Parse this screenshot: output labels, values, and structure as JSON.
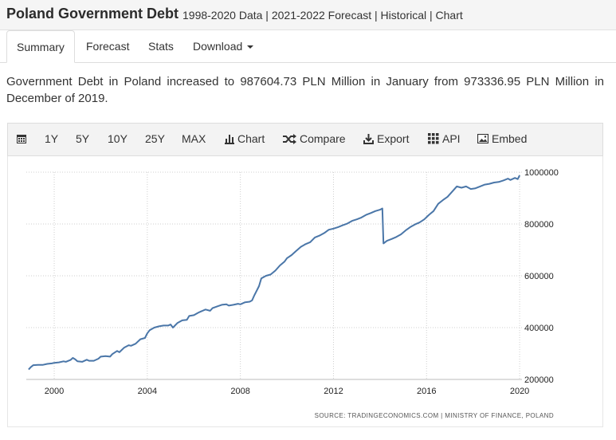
{
  "header": {
    "title": "Poland Government Debt",
    "subtitle": "1998-2020 Data | 2021-2022 Forecast | Historical | Chart"
  },
  "tabs": [
    {
      "label": "Summary",
      "active": true
    },
    {
      "label": "Forecast",
      "active": false
    },
    {
      "label": "Stats",
      "active": false
    },
    {
      "label": "Download",
      "active": false
    }
  ],
  "description": "Government Debt in Poland increased to 987604.73 PLN Million in January from 973336.95 PLN Million in December of 2019.",
  "toolbar": {
    "calendar_icon": "calendar-icon",
    "ranges": [
      "1Y",
      "5Y",
      "10Y",
      "25Y",
      "MAX"
    ],
    "chart_label": "Chart",
    "compare_label": "Compare",
    "export_label": "Export",
    "api_label": "API",
    "embed_label": "Embed"
  },
  "chart_data": {
    "type": "line",
    "title": "",
    "xlabel": "",
    "ylabel": "",
    "x_ticks": [
      "2000",
      "2004",
      "2008",
      "2012",
      "2016",
      "2020"
    ],
    "y_ticks": [
      "200000",
      "400000",
      "600000",
      "800000",
      "1000000"
    ],
    "xlim": [
      1998.8,
      2020.1
    ],
    "ylim": [
      200000,
      1000000
    ],
    "grid": true,
    "line_color": "#4a76a8",
    "source": "SOURCE: TRADINGECONOMICS.COM | MINISTRY OF FINANCE, POLAND",
    "series": [
      {
        "name": "",
        "points": [
          [
            1998.9,
            238000
          ],
          [
            1999.0,
            248000
          ],
          [
            1999.1,
            255000
          ],
          [
            1999.3,
            256000
          ],
          [
            1999.5,
            256000
          ],
          [
            1999.7,
            260000
          ],
          [
            1999.9,
            262000
          ],
          [
            2000.0,
            264000
          ],
          [
            2000.2,
            266000
          ],
          [
            2000.4,
            270000
          ],
          [
            2000.5,
            268000
          ],
          [
            2000.7,
            275000
          ],
          [
            2000.8,
            283000
          ],
          [
            2000.9,
            278000
          ],
          [
            2001.0,
            270000
          ],
          [
            2001.2,
            268000
          ],
          [
            2001.4,
            276000
          ],
          [
            2001.5,
            272000
          ],
          [
            2001.7,
            272000
          ],
          [
            2001.9,
            280000
          ],
          [
            2002.0,
            288000
          ],
          [
            2002.2,
            290000
          ],
          [
            2002.4,
            288000
          ],
          [
            2002.5,
            298000
          ],
          [
            2002.7,
            310000
          ],
          [
            2002.8,
            305000
          ],
          [
            2003.0,
            322000
          ],
          [
            2003.2,
            332000
          ],
          [
            2003.3,
            330000
          ],
          [
            2003.5,
            338000
          ],
          [
            2003.7,
            355000
          ],
          [
            2003.9,
            360000
          ],
          [
            2004.0,
            378000
          ],
          [
            2004.1,
            390000
          ],
          [
            2004.3,
            400000
          ],
          [
            2004.5,
            405000
          ],
          [
            2004.7,
            408000
          ],
          [
            2004.9,
            408000
          ],
          [
            2005.0,
            412000
          ],
          [
            2005.1,
            400000
          ],
          [
            2005.3,
            418000
          ],
          [
            2005.5,
            428000
          ],
          [
            2005.7,
            430000
          ],
          [
            2005.8,
            445000
          ],
          [
            2006.0,
            448000
          ],
          [
            2006.2,
            458000
          ],
          [
            2006.3,
            462000
          ],
          [
            2006.5,
            470000
          ],
          [
            2006.7,
            465000
          ],
          [
            2006.8,
            475000
          ],
          [
            2007.0,
            482000
          ],
          [
            2007.2,
            488000
          ],
          [
            2007.4,
            490000
          ],
          [
            2007.5,
            485000
          ],
          [
            2007.7,
            488000
          ],
          [
            2007.9,
            492000
          ],
          [
            2008.0,
            490000
          ],
          [
            2008.2,
            498000
          ],
          [
            2008.4,
            500000
          ],
          [
            2008.5,
            505000
          ],
          [
            2008.6,
            525000
          ],
          [
            2008.8,
            560000
          ],
          [
            2008.9,
            590000
          ],
          [
            2009.1,
            600000
          ],
          [
            2009.3,
            605000
          ],
          [
            2009.5,
            620000
          ],
          [
            2009.7,
            640000
          ],
          [
            2009.9,
            655000
          ],
          [
            2010.0,
            668000
          ],
          [
            2010.2,
            680000
          ],
          [
            2010.4,
            696000
          ],
          [
            2010.6,
            712000
          ],
          [
            2010.8,
            722000
          ],
          [
            2011.0,
            730000
          ],
          [
            2011.2,
            748000
          ],
          [
            2011.4,
            755000
          ],
          [
            2011.6,
            765000
          ],
          [
            2011.8,
            778000
          ],
          [
            2012.0,
            782000
          ],
          [
            2012.2,
            788000
          ],
          [
            2012.4,
            795000
          ],
          [
            2012.6,
            802000
          ],
          [
            2012.8,
            812000
          ],
          [
            2013.0,
            818000
          ],
          [
            2013.2,
            825000
          ],
          [
            2013.4,
            835000
          ],
          [
            2013.6,
            842000
          ],
          [
            2013.8,
            850000
          ],
          [
            2014.0,
            855000
          ],
          [
            2014.1,
            860000
          ],
          [
            2014.15,
            725000
          ],
          [
            2014.3,
            735000
          ],
          [
            2014.5,
            742000
          ],
          [
            2014.7,
            750000
          ],
          [
            2014.9,
            760000
          ],
          [
            2015.1,
            775000
          ],
          [
            2015.3,
            788000
          ],
          [
            2015.5,
            798000
          ],
          [
            2015.7,
            806000
          ],
          [
            2015.9,
            818000
          ],
          [
            2016.1,
            835000
          ],
          [
            2016.3,
            850000
          ],
          [
            2016.5,
            878000
          ],
          [
            2016.7,
            892000
          ],
          [
            2016.9,
            905000
          ],
          [
            2017.1,
            925000
          ],
          [
            2017.3,
            945000
          ],
          [
            2017.5,
            940000
          ],
          [
            2017.7,
            945000
          ],
          [
            2017.9,
            935000
          ],
          [
            2018.1,
            938000
          ],
          [
            2018.3,
            945000
          ],
          [
            2018.5,
            952000
          ],
          [
            2018.7,
            955000
          ],
          [
            2018.9,
            960000
          ],
          [
            2019.1,
            962000
          ],
          [
            2019.3,
            968000
          ],
          [
            2019.5,
            975000
          ],
          [
            2019.6,
            970000
          ],
          [
            2019.8,
            978000
          ],
          [
            2019.92,
            973337
          ],
          [
            2020.0,
            987605
          ]
        ]
      }
    ]
  }
}
